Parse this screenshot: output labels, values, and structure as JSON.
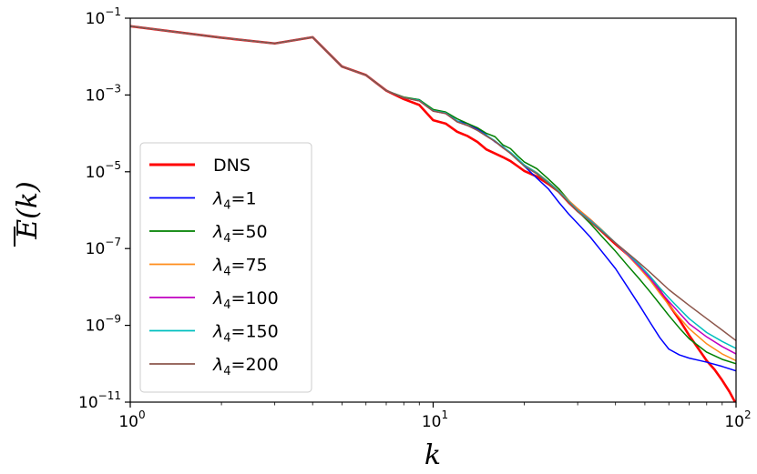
{
  "chart_data": {
    "type": "line",
    "xscale": "log",
    "yscale": "log",
    "xlim": [
      1,
      100
    ],
    "ylim": [
      1e-11,
      0.1
    ],
    "xlabel": "k",
    "ylabel": "E(k)",
    "ylabel_overline": true,
    "legend_position": "center-left",
    "x_ticks": [
      {
        "value": 1,
        "base": "10",
        "exp": "0"
      },
      {
        "value": 10,
        "base": "10",
        "exp": "1"
      },
      {
        "value": 100,
        "base": "10",
        "exp": "2"
      }
    ],
    "y_ticks": [
      {
        "value": 1e-11,
        "base": "10",
        "exp": "−11"
      },
      {
        "value": 1e-09,
        "base": "10",
        "exp": "−9"
      },
      {
        "value": 1e-07,
        "base": "10",
        "exp": "−7"
      },
      {
        "value": 1e-05,
        "base": "10",
        "exp": "−5"
      },
      {
        "value": 0.001,
        "base": "10",
        "exp": "−3"
      },
      {
        "value": 0.1,
        "base": "10",
        "exp": "−1"
      }
    ],
    "series": [
      {
        "name": "DNS",
        "label_pre": "DNS",
        "label_sub": "",
        "label_post": "",
        "color": "#ff0000",
        "width": 2.6,
        "points": [
          [
            1,
            0.062
          ],
          [
            2,
            0.031
          ],
          [
            3,
            0.022
          ],
          [
            4,
            0.032
          ],
          [
            5,
            0.0055
          ],
          [
            6,
            0.0033
          ],
          [
            7,
            0.0013
          ],
          [
            8,
            0.00078
          ],
          [
            9,
            0.00055
          ],
          [
            10,
            0.00022
          ],
          [
            11,
            0.00018
          ],
          [
            12,
            0.00011
          ],
          [
            13,
            8.5e-05
          ],
          [
            14,
            6e-05
          ],
          [
            15,
            3.8e-05
          ],
          [
            16,
            3e-05
          ],
          [
            17,
            2.4e-05
          ],
          [
            18,
            1.9e-05
          ],
          [
            19,
            1.4e-05
          ],
          [
            20,
            1.05e-05
          ],
          [
            22,
            7.5e-06
          ],
          [
            24,
            4.8e-06
          ],
          [
            26,
            3e-06
          ],
          [
            28,
            1.6e-06
          ],
          [
            30,
            9.5e-07
          ],
          [
            33,
            5.2e-07
          ],
          [
            36,
            2.8e-07
          ],
          [
            40,
            1.3e-07
          ],
          [
            44,
            6.8e-08
          ],
          [
            48,
            3.6e-08
          ],
          [
            52,
            1.7e-08
          ],
          [
            56,
            8.2e-09
          ],
          [
            60,
            3.5e-09
          ],
          [
            65,
            1.4e-09
          ],
          [
            70,
            5.5e-10
          ],
          [
            75,
            2.5e-10
          ],
          [
            80,
            1.2e-10
          ],
          [
            85,
            7e-11
          ],
          [
            90,
            3.7e-11
          ],
          [
            95,
            1.9e-11
          ],
          [
            100,
            9e-12
          ]
        ]
      },
      {
        "name": "lambda4-1",
        "label_pre": "λ",
        "label_sub": "4",
        "label_post": "=1",
        "color": "#0000ff",
        "width": 1.5,
        "points": [
          [
            1,
            0.062
          ],
          [
            2,
            0.031
          ],
          [
            3,
            0.022
          ],
          [
            4,
            0.032
          ],
          [
            5,
            0.0055
          ],
          [
            6,
            0.0033
          ],
          [
            7,
            0.0013
          ],
          [
            8,
            0.00085
          ],
          [
            9,
            0.00075
          ],
          [
            10,
            0.0004
          ],
          [
            11,
            0.00035
          ],
          [
            12,
            0.00021
          ],
          [
            13,
            0.00018
          ],
          [
            14,
            0.00013
          ],
          [
            15,
            9e-05
          ],
          [
            16,
            6e-05
          ],
          [
            17,
            4.5e-05
          ],
          [
            18,
            3e-05
          ],
          [
            19,
            2.1e-05
          ],
          [
            20,
            1.4e-05
          ],
          [
            22,
            6.8e-06
          ],
          [
            24,
            3.6e-06
          ],
          [
            26,
            1.6e-06
          ],
          [
            28,
            8e-07
          ],
          [
            30,
            4.5e-07
          ],
          [
            33,
            2e-07
          ],
          [
            36,
            8.5e-08
          ],
          [
            40,
            3e-08
          ],
          [
            44,
            9.5e-09
          ],
          [
            48,
            3.3e-09
          ],
          [
            52,
            1.2e-09
          ],
          [
            56,
            4.8e-10
          ],
          [
            60,
            2.4e-10
          ],
          [
            65,
            1.7e-10
          ],
          [
            70,
            1.4e-10
          ],
          [
            80,
            1.1e-10
          ],
          [
            90,
            8.5e-11
          ],
          [
            100,
            6.5e-11
          ]
        ]
      },
      {
        "name": "lambda4-50",
        "label_pre": "λ",
        "label_sub": "4",
        "label_post": "=50",
        "color": "#008000",
        "width": 1.5,
        "points": [
          [
            1,
            0.062
          ],
          [
            2,
            0.031
          ],
          [
            3,
            0.022
          ],
          [
            4,
            0.032
          ],
          [
            5,
            0.0055
          ],
          [
            6,
            0.0033
          ],
          [
            7,
            0.0013
          ],
          [
            8,
            0.00088
          ],
          [
            9,
            0.00075
          ],
          [
            10,
            0.00042
          ],
          [
            11,
            0.00036
          ],
          [
            12,
            0.00024
          ],
          [
            13,
            0.00018
          ],
          [
            14,
            0.00014
          ],
          [
            15,
            0.0001
          ],
          [
            16,
            8.2e-05
          ],
          [
            17,
            5e-05
          ],
          [
            18,
            4e-05
          ],
          [
            19,
            2.6e-05
          ],
          [
            20,
            1.8e-05
          ],
          [
            22,
            1.2e-05
          ],
          [
            24,
            6.5e-06
          ],
          [
            26,
            3.6e-06
          ],
          [
            28,
            1.8e-06
          ],
          [
            30,
            9.5e-07
          ],
          [
            33,
            4.5e-07
          ],
          [
            36,
            2.1e-07
          ],
          [
            40,
            8.5e-08
          ],
          [
            44,
            3.5e-08
          ],
          [
            48,
            1.6e-08
          ],
          [
            52,
            7.5e-09
          ],
          [
            56,
            3.6e-09
          ],
          [
            60,
            1.8e-09
          ],
          [
            65,
            8.5e-10
          ],
          [
            70,
            4.5e-10
          ],
          [
            80,
            2e-10
          ],
          [
            90,
            1.3e-10
          ],
          [
            100,
            1e-10
          ]
        ]
      },
      {
        "name": "lambda4-75",
        "label_pre": "λ",
        "label_sub": "4",
        "label_post": "=75",
        "color": "#ff8c1a",
        "width": 1.5,
        "points": [
          [
            1,
            0.062
          ],
          [
            2,
            0.031
          ],
          [
            3,
            0.022
          ],
          [
            4,
            0.032
          ],
          [
            5,
            0.0055
          ],
          [
            6,
            0.0033
          ],
          [
            7,
            0.0013
          ],
          [
            8,
            0.00085
          ],
          [
            9,
            0.0007
          ],
          [
            10,
            0.00038
          ],
          [
            11,
            0.00033
          ],
          [
            12,
            0.0002
          ],
          [
            13,
            0.00016
          ],
          [
            14,
            0.00012
          ],
          [
            15,
            8.5e-05
          ],
          [
            16,
            6.2e-05
          ],
          [
            17,
            4.2e-05
          ],
          [
            18,
            3.1e-05
          ],
          [
            19,
            2.1e-05
          ],
          [
            20,
            1.5e-05
          ],
          [
            22,
            9.5e-06
          ],
          [
            24,
            5.5e-06
          ],
          [
            26,
            3.2e-06
          ],
          [
            28,
            1.8e-06
          ],
          [
            30,
            1.1e-06
          ],
          [
            33,
            5.8e-07
          ],
          [
            36,
            3.1e-07
          ],
          [
            40,
            1.4e-07
          ],
          [
            44,
            6.5e-08
          ],
          [
            48,
            3.1e-08
          ],
          [
            52,
            1.5e-08
          ],
          [
            56,
            6.8e-09
          ],
          [
            60,
            3.4e-09
          ],
          [
            65,
            1.6e-09
          ],
          [
            70,
            8.2e-10
          ],
          [
            80,
            3.3e-10
          ],
          [
            90,
            1.8e-10
          ],
          [
            100,
            1.2e-10
          ]
        ]
      },
      {
        "name": "lambda4-100",
        "label_pre": "λ",
        "label_sub": "4",
        "label_post": "=100",
        "color": "#c000c0",
        "width": 1.5,
        "points": [
          [
            1,
            0.062
          ],
          [
            2,
            0.031
          ],
          [
            3,
            0.022
          ],
          [
            4,
            0.032
          ],
          [
            5,
            0.0055
          ],
          [
            6,
            0.0033
          ],
          [
            7,
            0.0013
          ],
          [
            8,
            0.00085
          ],
          [
            9,
            0.0007
          ],
          [
            10,
            0.00038
          ],
          [
            11,
            0.00033
          ],
          [
            12,
            0.0002
          ],
          [
            13,
            0.00016
          ],
          [
            14,
            0.00012
          ],
          [
            15,
            8.5e-05
          ],
          [
            16,
            6.2e-05
          ],
          [
            17,
            4.2e-05
          ],
          [
            18,
            3.1e-05
          ],
          [
            19,
            2.1e-05
          ],
          [
            20,
            1.5e-05
          ],
          [
            22,
            9.2e-06
          ],
          [
            24,
            5.3e-06
          ],
          [
            26,
            3.1e-06
          ],
          [
            28,
            1.7e-06
          ],
          [
            30,
            1e-06
          ],
          [
            33,
            5.5e-07
          ],
          [
            36,
            3e-07
          ],
          [
            40,
            1.4e-07
          ],
          [
            44,
            6.8e-08
          ],
          [
            48,
            3.4e-08
          ],
          [
            52,
            1.7e-08
          ],
          [
            56,
            8e-09
          ],
          [
            60,
            4.2e-09
          ],
          [
            65,
            2.1e-09
          ],
          [
            70,
            1.1e-09
          ],
          [
            80,
            5e-10
          ],
          [
            90,
            2.8e-10
          ],
          [
            100,
            1.8e-10
          ]
        ]
      },
      {
        "name": "lambda4-150",
        "label_pre": "λ",
        "label_sub": "4",
        "label_post": "=150",
        "color": "#00bfbf",
        "width": 1.5,
        "points": [
          [
            1,
            0.062
          ],
          [
            2,
            0.031
          ],
          [
            3,
            0.022
          ],
          [
            4,
            0.032
          ],
          [
            5,
            0.0055
          ],
          [
            6,
            0.0033
          ],
          [
            7,
            0.0013
          ],
          [
            8,
            0.00085
          ],
          [
            9,
            0.00072
          ],
          [
            10,
            0.00039
          ],
          [
            11,
            0.00034
          ],
          [
            12,
            0.00021
          ],
          [
            13,
            0.00016
          ],
          [
            14,
            0.00012
          ],
          [
            15,
            8.8e-05
          ],
          [
            16,
            6.4e-05
          ],
          [
            17,
            4.4e-05
          ],
          [
            18,
            3.2e-05
          ],
          [
            19,
            2.2e-05
          ],
          [
            20,
            1.5e-05
          ],
          [
            22,
            9.3e-06
          ],
          [
            24,
            5.4e-06
          ],
          [
            26,
            3.1e-06
          ],
          [
            28,
            1.7e-06
          ],
          [
            30,
            9.8e-07
          ],
          [
            33,
            5.4e-07
          ],
          [
            36,
            3e-07
          ],
          [
            40,
            1.4e-07
          ],
          [
            44,
            7.2e-08
          ],
          [
            48,
            3.7e-08
          ],
          [
            52,
            1.9e-08
          ],
          [
            56,
            9.5e-09
          ],
          [
            60,
            5.2e-09
          ],
          [
            65,
            2.7e-09
          ],
          [
            70,
            1.5e-09
          ],
          [
            80,
            6.5e-10
          ],
          [
            90,
            3.8e-10
          ],
          [
            100,
            2.5e-10
          ]
        ]
      },
      {
        "name": "lambda4-200",
        "label_pre": "λ",
        "label_sub": "4",
        "label_post": "=200",
        "color": "#8c564b",
        "width": 1.5,
        "points": [
          [
            1,
            0.062
          ],
          [
            2,
            0.031
          ],
          [
            3,
            0.022
          ],
          [
            4,
            0.032
          ],
          [
            5,
            0.0055
          ],
          [
            6,
            0.0033
          ],
          [
            7,
            0.0013
          ],
          [
            8,
            0.00085
          ],
          [
            9,
            0.0007
          ],
          [
            10,
            0.00038
          ],
          [
            11,
            0.00033
          ],
          [
            12,
            0.0002
          ],
          [
            13,
            0.00016
          ],
          [
            14,
            0.00012
          ],
          [
            15,
            8.5e-05
          ],
          [
            16,
            6.2e-05
          ],
          [
            17,
            4.2e-05
          ],
          [
            18,
            3e-05
          ],
          [
            19,
            2e-05
          ],
          [
            20,
            1.4e-05
          ],
          [
            22,
            8.8e-06
          ],
          [
            24,
            5e-06
          ],
          [
            26,
            2.9e-06
          ],
          [
            28,
            1.6e-06
          ],
          [
            30,
            9.2e-07
          ],
          [
            33,
            5e-07
          ],
          [
            36,
            2.8e-07
          ],
          [
            40,
            1.4e-07
          ],
          [
            44,
            7.5e-08
          ],
          [
            48,
            4.2e-08
          ],
          [
            52,
            2.4e-08
          ],
          [
            56,
            1.4e-08
          ],
          [
            60,
            8.5e-09
          ],
          [
            65,
            5.2e-09
          ],
          [
            70,
            3.3e-09
          ],
          [
            80,
            1.5e-09
          ],
          [
            90,
            7.5e-10
          ],
          [
            100,
            4e-10
          ]
        ]
      }
    ]
  }
}
